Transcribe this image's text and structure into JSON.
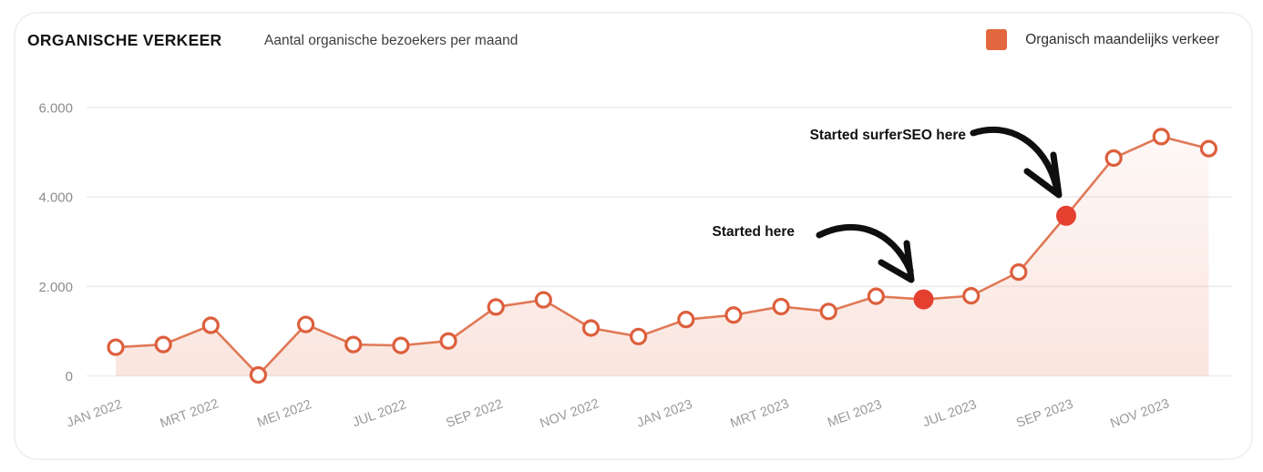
{
  "header": {
    "title": "ORGANISCHE VERKEER",
    "subtitle": "Aantal organische bezoekers per maand",
    "legend": {
      "label": "Organisch maandelijks verkeer",
      "swatch_color": "#e2673e"
    }
  },
  "chart_data": {
    "type": "area",
    "title": "ORGANISCHE VERKEER",
    "subtitle": "Aantal organische bezoekers per maand",
    "legend_entries": [
      "Organisch maandelijks verkeer"
    ],
    "legend_position": "top-right",
    "grid": "horizontal",
    "x": [
      "JAN 2022",
      "FEB 2022",
      "MRT 2022",
      "APR 2022",
      "MEI 2022",
      "JUN 2022",
      "JUL 2022",
      "AUG 2022",
      "SEP 2022",
      "OKT 2022",
      "NOV 2022",
      "DEC 2022",
      "JAN 2023",
      "FEB 2023",
      "MRT 2023",
      "APR 2023",
      "MEI 2023",
      "JUN 2023",
      "JUL 2023",
      "AUG 2023",
      "SEP 2023",
      "OKT 2023",
      "NOV 2023",
      "DEC 2023"
    ],
    "x_tick_labels": [
      "JAN 2022",
      "MRT 2022",
      "MEI 2022",
      "JUL 2022",
      "SEP 2022",
      "NOV 2022",
      "JAN 2023",
      "MRT 2023",
      "MEI 2023",
      "JUL 2023",
      "SEP 2023",
      "NOV 2023"
    ],
    "series": [
      {
        "name": "Organisch maandelijks verkeer",
        "values": [
          640,
          700,
          1130,
          20,
          1150,
          700,
          680,
          780,
          1540,
          1700,
          1070,
          880,
          1260,
          1360,
          1550,
          1440,
          1780,
          1710,
          1790,
          2320,
          3580,
          4870,
          5350,
          5080
        ]
      }
    ],
    "ylim": [
      0,
      6000
    ],
    "y_tick_values": [
      0,
      2000,
      4000,
      6000
    ],
    "y_ticks": [
      "0",
      "2.000",
      "4.000",
      "6.000"
    ],
    "highlighted_points": [
      {
        "index": 17,
        "month": "JUN 2023",
        "value": 1710,
        "label": "Started here"
      },
      {
        "index": 20,
        "month": "SEP 2023",
        "value": 3580,
        "label": "Started surferSEO here"
      }
    ],
    "colors": {
      "line": "#e07856",
      "marker_ring": "#dd5f3d",
      "marker_fill": "#ffffff",
      "highlight_dot": "#e5402f",
      "area_base": "#e2673e",
      "grid": "#ededed",
      "axis_text_y": "#8c8c8c",
      "axis_text_x": "#9a9a9a",
      "annotation": "#111111"
    }
  }
}
